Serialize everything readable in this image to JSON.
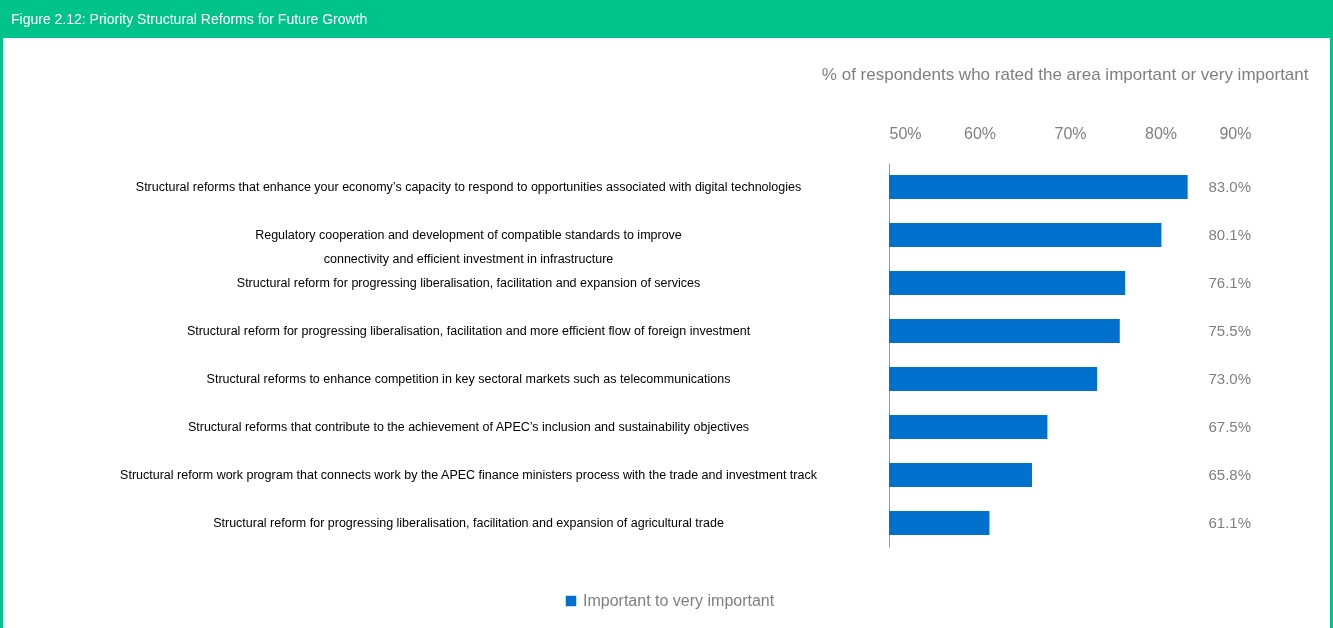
{
  "chart_data": {
    "type": "bar",
    "orientation": "horizontal",
    "title": "Figure 2.12: Priority Structural Reforms for Future Growth",
    "xlabel": "% of respondents who rated the area important or very important",
    "categories": [
      "Structural reforms that enhance your economy’s capacity to respond to opportunities associated with digital technologies",
      "Regulatory cooperation and development of compatible standards to improve\nconnectivity and efficient investment in infrastructure",
      "Structural reform for progressing liberalisation, facilitation and expansion of services",
      "Structural reform for progressing liberalisation, facilitation and more efficient flow of foreign investment",
      "Structural reforms to enhance competition in key sectoral markets such as telecommunications",
      "Structural reforms that contribute to the achievement of APEC’s inclusion and sustainability objectives",
      "Structural reform work program that connects work by the APEC finance ministers process with the trade and investment track",
      "Structural reform for progressing liberalisation, facilitation and expansion of agricultural trade"
    ],
    "series": [
      {
        "name": "Important to very important",
        "color": "#0070cd",
        "values": [
          83.0,
          80.1,
          76.1,
          75.5,
          73.0,
          67.5,
          65.8,
          61.1
        ],
        "value_labels": [
          "83.0%",
          "80.1%",
          "76.1%",
          "75.5%",
          "73.0%",
          "67.5%",
          "65.8%",
          "61.1%"
        ]
      }
    ],
    "xlim": [
      50,
      90
    ],
    "xticks": [
      {
        "value": 50,
        "label": "50%"
      },
      {
        "value": 60,
        "label": "60%"
      },
      {
        "value": 70,
        "label": "70%"
      },
      {
        "value": 80,
        "label": "80%"
      },
      {
        "value": 90,
        "label": "90%"
      }
    ],
    "legend": "bottom"
  }
}
